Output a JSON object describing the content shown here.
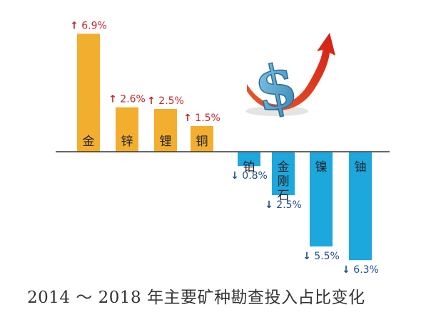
{
  "chart_data": {
    "type": "bar",
    "title": "2014 ～ 2018 年主要矿种勘查投入占比变化",
    "xlabel": "",
    "ylabel": "",
    "ylim": [
      -6.9,
      6.9
    ],
    "grid": false,
    "legend": "none",
    "categories": [
      "金",
      "锌",
      "锂",
      "铜",
      "铂",
      "金刚石",
      "镍",
      "铀"
    ],
    "values": [
      6.9,
      2.6,
      2.5,
      1.5,
      -0.8,
      -2.5,
      -5.5,
      -6.3
    ],
    "labels": [
      "6.9%",
      "2.6%",
      "2.5%",
      "1.5%",
      "0.8%",
      "2.5%",
      "5.5%",
      "6.3%"
    ],
    "up_arrow": "↑",
    "down_arrow": "↓",
    "colors": {
      "positive_bar": "#F2AE2E",
      "negative_bar": "#1CA7DD",
      "up_label": "#C0282C",
      "down_label": "#1F4E8C",
      "axis": "#333333",
      "category_text": "#222222",
      "decoration_arrow": "#E3321B",
      "decoration_dollar": "#3C8FB8"
    },
    "decoration": "dollar-sign-with-rising-arrow"
  }
}
